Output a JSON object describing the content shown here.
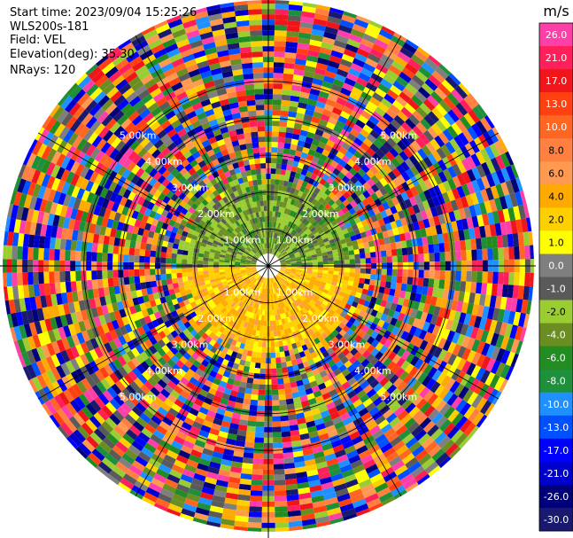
{
  "header": {
    "start_time": "Start time: 2023/09/04 15:25:26",
    "site": "WLS200s-181",
    "field": "Field: VEL",
    "elevation": "Elevation(deg): 35.30",
    "nrays": "NRays: 120"
  },
  "chart_data": {
    "type": "heatmap",
    "subtype": "polar-ppi",
    "title": "",
    "field": "VEL",
    "units": "m/s",
    "n_rays": 120,
    "elevation_deg": 35.3,
    "max_range_km": 7.2,
    "range_rings_km": [
      1,
      2,
      3,
      4,
      5
    ],
    "range_ring_labels": [
      "1.00km",
      "2.00km",
      "3.00km",
      "4.00km",
      "5.00km"
    ],
    "spokes_deg": [
      0,
      30,
      60,
      90,
      120,
      150,
      180,
      210,
      240,
      270,
      300,
      330
    ],
    "colorbar": {
      "label": "m/s",
      "tick_labels": [
        "26.0",
        "21.0",
        "17.0",
        "13.0",
        "10.0",
        "8.0",
        "6.0",
        "4.0",
        "2.0",
        "1.0",
        "0.0",
        "-1.0",
        "-2.0",
        "-4.0",
        "-6.0",
        "-8.0",
        "-10.0",
        "-13.0",
        "-17.0",
        "-21.0",
        "-26.0",
        "-30.0"
      ],
      "colors": [
        "#ff3fa8",
        "#ff1f5a",
        "#f0151a",
        "#ff4010",
        "#ff6622",
        "#ff8040",
        "#ff9a50",
        "#ffaa00",
        "#ffd000",
        "#ffff00",
        "#7f7f7f",
        "#5a5a5a",
        "#9acd32",
        "#6b8e23",
        "#228b22",
        "#1e8f3a",
        "#1e90ff",
        "#0050ff",
        "#0000ff",
        "#0000cd",
        "#00007a",
        "#191970"
      ]
    },
    "near_field": {
      "north_half_velocity_ms": [
        -6.0,
        -1.0
      ],
      "south_half_velocity_ms": [
        1.0,
        6.0
      ],
      "valid_range_km": 2.1
    }
  }
}
